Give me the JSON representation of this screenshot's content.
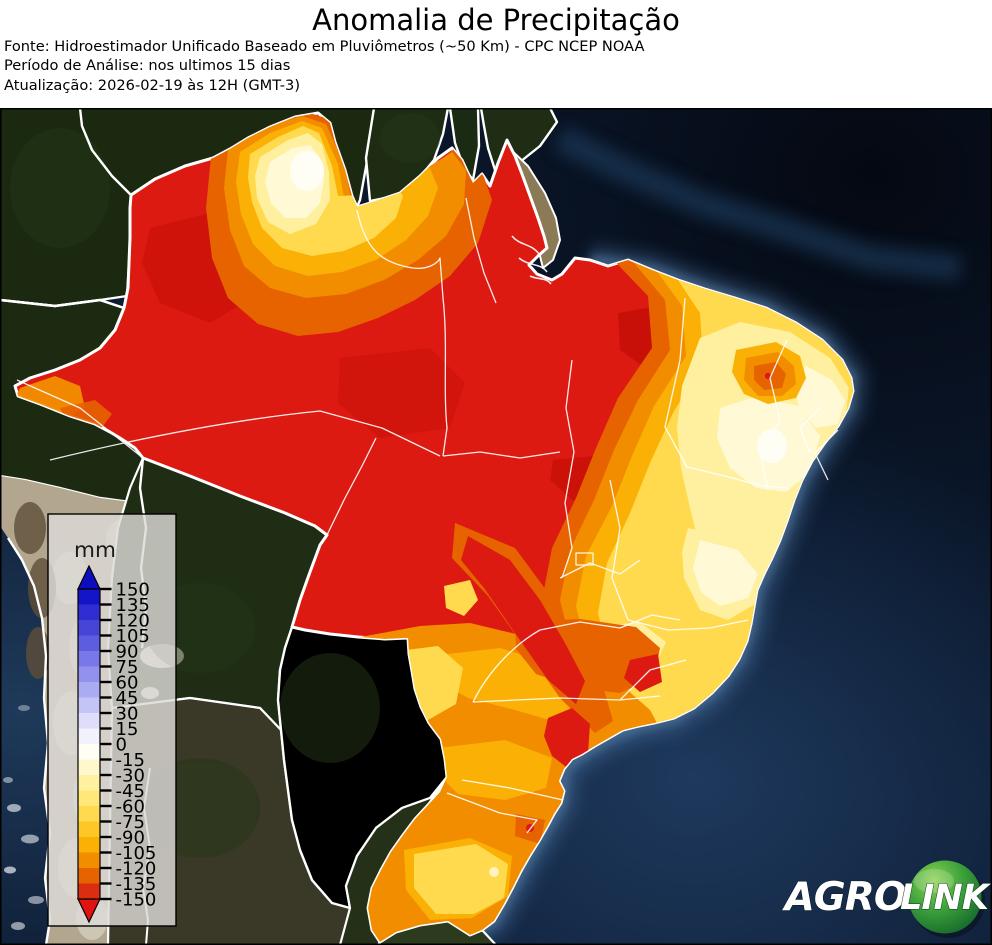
{
  "header": {
    "title": "Anomalia de Precipitação",
    "source": "Fonte: Hidroestimador Unificado Baseado em Pluviômetros (~50 Km) - CPC NCEP NOAA",
    "period": "Período de Análise: nos ultimos 15 dias",
    "updated": "Atualização: 2026-02-19 às 12H (GMT-3)"
  },
  "legend": {
    "unit_label": "mm",
    "tick_values": [
      150,
      135,
      120,
      105,
      90,
      75,
      60,
      45,
      30,
      15,
      0,
      -15,
      -30,
      -45,
      -60,
      -75,
      -90,
      -105,
      -120,
      -135,
      -150
    ],
    "tick_step": 15,
    "range_min": -150,
    "range_max": 150,
    "segment_colors_top_to_bottom": [
      "#1414c8",
      "#2e2ed2",
      "#4545d8",
      "#5d5de0",
      "#7878e8",
      "#9292ee",
      "#ababf2",
      "#c4c4f6",
      "#dedefa",
      "#f2f2fd",
      "#fffef2",
      "#fff8cd",
      "#fff1a0",
      "#ffe878",
      "#ffda4e",
      "#fec728",
      "#fbb005",
      "#f28d00",
      "#e66300",
      "#da2d12"
    ],
    "arrow_top_color": "#0d0dc0",
    "arrow_bottom_color": "#e01212"
  },
  "map": {
    "region_shown": "América do Sul / Brasil",
    "anomaly_palette": {
      "strong_deficit_red": "#dc1a12",
      "deficit_dark_orange": "#e66300",
      "deficit_orange": "#f28d00",
      "deficit_amber": "#fbb005",
      "deficit_gold": "#ffda4e",
      "mild_deficit_pale_yellow": "#fff0a0",
      "near_zero_cream": "#fff9d6",
      "near_zero_white": "#fffef4"
    },
    "ocean_color": "#0d1c33",
    "border_color": "#ffffff"
  },
  "logo": {
    "brand_part1": "AGRO",
    "brand_part2": "LINK",
    "ball_color": "#2f9e3f"
  }
}
